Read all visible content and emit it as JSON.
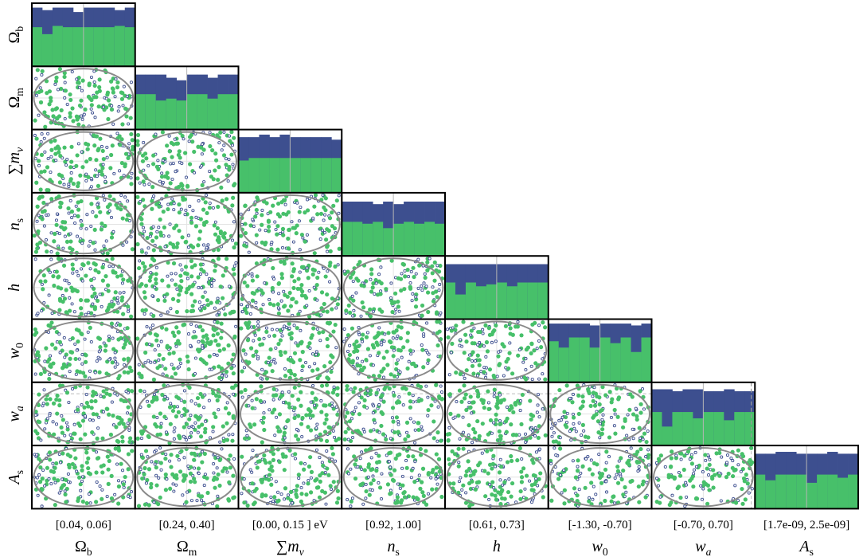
{
  "chart_data": {
    "type": "corner-plot",
    "description_layout": "lower-triangle",
    "parameters": [
      {
        "label": "Ω",
        "sub": "b",
        "range_label": "[0.04, 0.06]",
        "range": [
          0.04,
          0.06
        ]
      },
      {
        "label": "Ω",
        "sub": "m",
        "range_label": "[0.24, 0.40]",
        "range": [
          0.24,
          0.4
        ]
      },
      {
        "label": "∑m",
        "sub": "ν",
        "range_label": "[0.00, 0.15 ] eV",
        "range": [
          0.0,
          0.15
        ]
      },
      {
        "label": "n",
        "sub": "s",
        "range_label": "[0.92, 1.00]",
        "range": [
          0.92,
          1.0
        ]
      },
      {
        "label": "h",
        "sub": "",
        "range_label": "[0.61, 0.73]",
        "range": [
          0.61,
          0.73
        ]
      },
      {
        "label": "w",
        "sub": "0",
        "range_label": "[-1.30, -0.70]",
        "range": [
          -1.3,
          -0.7
        ]
      },
      {
        "label": "w",
        "sub": "a",
        "range_label": "[-0.70, 0.70]",
        "range": [
          -0.7,
          0.7
        ]
      },
      {
        "label": "A",
        "sub": "s",
        "range_label": "[1.7e-09, 2.5e-09]",
        "range": [
          1.7e-09,
          2.5e-09
        ]
      }
    ],
    "histograms": {
      "bins": 10,
      "fraction_labels": [
        "Ω_b",
        "Ω_m",
        "∑m_ν",
        "n_s",
        "h",
        "w_0",
        "w_a",
        "A_s"
      ],
      "series": [
        {
          "color": "#3d4f8f",
          "values": [
            [
              0.93,
              0.89,
              0.93,
              0.93,
              0.86,
              0.93,
              0.93,
              0.93,
              0.89,
              0.93
            ],
            [
              0.87,
              0.87,
              0.87,
              0.82,
              0.78,
              0.87,
              0.87,
              0.82,
              0.87,
              0.87
            ],
            [
              0.88,
              0.88,
              0.92,
              0.88,
              0.92,
              0.88,
              0.88,
              0.88,
              0.88,
              0.84
            ],
            [
              0.86,
              0.86,
              0.86,
              0.82,
              0.86,
              0.82,
              0.86,
              0.86,
              0.86,
              0.86
            ],
            [
              0.87,
              0.87,
              0.87,
              0.87,
              0.87,
              0.87,
              0.87,
              0.87,
              0.87,
              0.87
            ],
            [
              0.93,
              0.93,
              0.93,
              0.93,
              0.9,
              0.93,
              0.93,
              0.93,
              0.9,
              0.93
            ],
            [
              0.89,
              0.89,
              0.86,
              0.89,
              0.89,
              0.86,
              0.86,
              0.89,
              0.86,
              0.86
            ],
            [
              0.87,
              0.87,
              0.9,
              0.9,
              0.87,
              0.87,
              0.87,
              0.9,
              0.87,
              0.87
            ]
          ]
        },
        {
          "color": "#47c06a",
          "values": [
            [
              0.62,
              0.51,
              0.64,
              0.62,
              0.62,
              0.62,
              0.62,
              0.62,
              0.64,
              0.62
            ],
            [
              0.56,
              0.56,
              0.46,
              0.49,
              0.46,
              0.56,
              0.56,
              0.49,
              0.56,
              0.56
            ],
            [
              0.51,
              0.55,
              0.55,
              0.55,
              0.55,
              0.55,
              0.55,
              0.55,
              0.55,
              0.55
            ],
            [
              0.54,
              0.54,
              0.51,
              0.54,
              0.44,
              0.51,
              0.54,
              0.51,
              0.54,
              0.51
            ],
            [
              0.58,
              0.39,
              0.58,
              0.52,
              0.55,
              0.58,
              0.52,
              0.58,
              0.58,
              0.58
            ],
            [
              0.65,
              0.55,
              0.71,
              0.71,
              0.55,
              0.71,
              0.62,
              0.71,
              0.48,
              0.71
            ],
            [
              0.53,
              0.3,
              0.53,
              0.53,
              0.43,
              0.53,
              0.53,
              0.4,
              0.53,
              0.53
            ],
            [
              0.54,
              0.45,
              0.54,
              0.54,
              0.54,
              0.41,
              0.54,
              0.54,
              0.49,
              0.54
            ]
          ]
        }
      ]
    },
    "scatter": {
      "series_colors": {
        "primary": "#47c06a",
        "secondary": "#3d4f8f"
      },
      "points_per_panel": 150,
      "ellipse_color": "#8a8a8a"
    },
    "reference_line_color": "#b5b5b5",
    "dashed_line_color": "#999999",
    "dashed_line_param_index": 6,
    "dashed_line_value": 0.65
  }
}
